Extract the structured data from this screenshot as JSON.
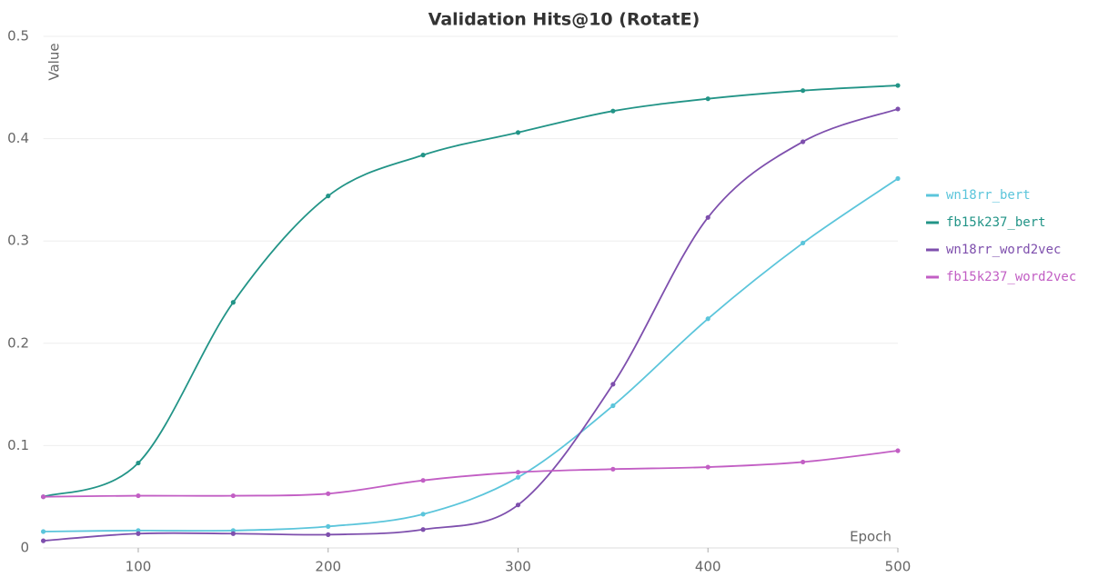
{
  "chart_data": {
    "type": "line",
    "title": "Validation Hits@10 (RotatE)",
    "x_label": "Epoch",
    "y_label": "Value",
    "x": [
      50,
      100,
      150,
      200,
      250,
      300,
      350,
      400,
      450,
      500
    ],
    "series": [
      {
        "name": "wn18rr_bert",
        "color": "#5bc5db",
        "values": [
          0.016,
          0.017,
          0.017,
          0.021,
          0.033,
          0.069,
          0.139,
          0.224,
          0.298,
          0.361
        ]
      },
      {
        "name": "fb15k237_bert",
        "color": "#229487",
        "values": [
          0.05,
          0.083,
          0.24,
          0.344,
          0.384,
          0.406,
          0.427,
          0.439,
          0.447,
          0.452
        ]
      },
      {
        "name": "wn18rr_word2vec",
        "color": "#7e4fad",
        "values": [
          0.007,
          0.014,
          0.014,
          0.013,
          0.018,
          0.042,
          0.16,
          0.323,
          0.397,
          0.429
        ]
      },
      {
        "name": "fb15k237_word2vec",
        "color": "#c25ec4",
        "values": [
          0.05,
          0.051,
          0.051,
          0.053,
          0.066,
          0.074,
          0.077,
          0.079,
          0.084,
          0.095
        ]
      }
    ],
    "xlim": [
      50,
      500
    ],
    "xticks": [
      100,
      200,
      300,
      400,
      500
    ],
    "ylim": [
      0,
      0.5
    ],
    "yticks": [
      0,
      0.1,
      0.2,
      0.3,
      0.4,
      0.5
    ],
    "grid": true,
    "legend": "right"
  }
}
